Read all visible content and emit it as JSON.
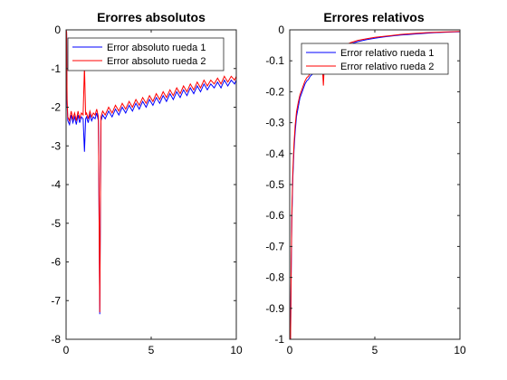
{
  "chart_data": [
    {
      "type": "line",
      "title": "Erorres absolutos",
      "xlabel": "",
      "ylabel": "",
      "xlim": [
        0,
        10
      ],
      "ylim": [
        -8,
        0
      ],
      "xticks": [
        0,
        5,
        10
      ],
      "yticks": [
        0,
        -1,
        -2,
        -3,
        -4,
        -5,
        -6,
        -7,
        -8
      ],
      "legend_location": "top-right",
      "grid": false,
      "series": [
        {
          "name": "Error absoluto rueda 1",
          "color": "#0000ff",
          "x": [
            0,
            0.03,
            0.06,
            0.1,
            0.2,
            0.3,
            0.4,
            0.5,
            0.6,
            0.7,
            0.8,
            0.9,
            1.0,
            1.08,
            1.15,
            1.2,
            1.3,
            1.4,
            1.5,
            1.6,
            1.7,
            1.8,
            1.9,
            1.98,
            2.05,
            2.15,
            2.3,
            2.5,
            2.7,
            2.9,
            3.1,
            3.3,
            3.5,
            3.7,
            3.9,
            4.1,
            4.3,
            4.5,
            4.7,
            4.9,
            5.1,
            5.3,
            5.5,
            5.7,
            5.9,
            6.1,
            6.3,
            6.5,
            6.7,
            6.9,
            7.1,
            7.3,
            7.5,
            7.7,
            7.9,
            8.1,
            8.3,
            8.5,
            8.7,
            8.9,
            9.1,
            9.3,
            9.5,
            9.7,
            9.9,
            10.0
          ],
          "y": [
            0,
            -0.1,
            -1.9,
            -2.35,
            -2.45,
            -2.2,
            -2.4,
            -2.25,
            -2.45,
            -2.2,
            -2.4,
            -2.25,
            -2.3,
            -3.15,
            -2.3,
            -2.25,
            -2.4,
            -2.2,
            -2.35,
            -2.25,
            -2.3,
            -2.15,
            -2.35,
            -7.35,
            -2.35,
            -2.2,
            -2.3,
            -2.1,
            -2.25,
            -2.05,
            -2.2,
            -2.0,
            -2.15,
            -1.95,
            -2.1,
            -1.9,
            -2.05,
            -1.85,
            -2.0,
            -1.8,
            -1.95,
            -1.75,
            -1.9,
            -1.7,
            -1.85,
            -1.65,
            -1.8,
            -1.6,
            -1.75,
            -1.55,
            -1.7,
            -1.5,
            -1.65,
            -1.45,
            -1.6,
            -1.4,
            -1.55,
            -1.4,
            -1.5,
            -1.35,
            -1.5,
            -1.3,
            -1.45,
            -1.3,
            -1.4,
            -1.3
          ]
        },
        {
          "name": "Error absoluto rueda 2",
          "color": "#ff0000",
          "x": [
            0,
            0.03,
            0.06,
            0.1,
            0.2,
            0.3,
            0.4,
            0.5,
            0.6,
            0.7,
            0.8,
            0.9,
            1.0,
            1.08,
            1.15,
            1.2,
            1.3,
            1.4,
            1.5,
            1.6,
            1.7,
            1.8,
            1.9,
            1.98,
            2.05,
            2.15,
            2.3,
            2.5,
            2.7,
            2.9,
            3.1,
            3.3,
            3.5,
            3.7,
            3.9,
            4.1,
            4.3,
            4.5,
            4.7,
            4.9,
            5.1,
            5.3,
            5.5,
            5.7,
            5.9,
            6.1,
            6.3,
            6.5,
            6.7,
            6.9,
            7.1,
            7.3,
            7.5,
            7.7,
            7.9,
            8.1,
            8.3,
            8.5,
            8.7,
            8.9,
            9.1,
            9.3,
            9.5,
            9.7,
            9.9,
            10.0
          ],
          "y": [
            0,
            -0.05,
            -1.8,
            -2.25,
            -2.35,
            -2.1,
            -2.3,
            -2.15,
            -2.35,
            -2.1,
            -2.3,
            -2.15,
            -2.2,
            -0.95,
            -2.2,
            -2.15,
            -2.3,
            -2.1,
            -2.25,
            -2.15,
            -2.2,
            -2.05,
            -2.25,
            -7.3,
            -2.25,
            -2.1,
            -2.2,
            -2.0,
            -2.15,
            -1.95,
            -2.1,
            -1.9,
            -2.05,
            -1.85,
            -2.0,
            -1.8,
            -1.95,
            -1.75,
            -1.9,
            -1.7,
            -1.85,
            -1.65,
            -1.8,
            -1.6,
            -1.75,
            -1.55,
            -1.7,
            -1.5,
            -1.65,
            -1.45,
            -1.6,
            -1.4,
            -1.55,
            -1.35,
            -1.5,
            -1.3,
            -1.45,
            -1.3,
            -1.4,
            -1.25,
            -1.4,
            -1.2,
            -1.35,
            -1.2,
            -1.3,
            -1.2
          ]
        }
      ]
    },
    {
      "type": "line",
      "title": "Errores relativos",
      "xlabel": "",
      "ylabel": "",
      "xlim": [
        0,
        10
      ],
      "ylim": [
        -1,
        0
      ],
      "xticks": [
        0,
        5,
        10
      ],
      "yticks": [
        0,
        -0.1,
        -0.2,
        -0.3,
        -0.4,
        -0.5,
        -0.6,
        -0.7,
        -0.8,
        -0.9,
        -1
      ],
      "legend_location": "top-right",
      "grid": false,
      "series": [
        {
          "name": "Error relativo rueda 1",
          "color": "#0000ff",
          "x": [
            0,
            0.05,
            0.08,
            0.12,
            0.18,
            0.25,
            0.32,
            0.4,
            0.5,
            0.6,
            0.7,
            0.8,
            0.9,
            1.0,
            1.1,
            1.2,
            1.3,
            1.4,
            1.5,
            1.6,
            1.7,
            1.8,
            1.9,
            1.98,
            2.05,
            2.2,
            2.4,
            2.6,
            2.8,
            3.0,
            3.3,
            3.6,
            4.0,
            4.5,
            5.0,
            5.5,
            6.0,
            6.5,
            7.0,
            7.5,
            8.0,
            8.5,
            9.0,
            9.5,
            10.0
          ],
          "y": [
            -1.0,
            -1.0,
            -0.82,
            -0.62,
            -0.48,
            -0.39,
            -0.33,
            -0.28,
            -0.25,
            -0.22,
            -0.205,
            -0.19,
            -0.175,
            -0.165,
            -0.16,
            -0.15,
            -0.145,
            -0.14,
            -0.13,
            -0.125,
            -0.12,
            -0.115,
            -0.11,
            -0.15,
            -0.1,
            -0.095,
            -0.085,
            -0.075,
            -0.068,
            -0.06,
            -0.052,
            -0.045,
            -0.038,
            -0.032,
            -0.027,
            -0.023,
            -0.02,
            -0.017,
            -0.015,
            -0.013,
            -0.011,
            -0.009,
            -0.008,
            -0.007,
            -0.006
          ]
        },
        {
          "name": "Error relativo rueda 2",
          "color": "#ff0000",
          "x": [
            0,
            0.05,
            0.08,
            0.12,
            0.18,
            0.25,
            0.32,
            0.4,
            0.5,
            0.6,
            0.7,
            0.8,
            0.9,
            1.0,
            1.1,
            1.2,
            1.3,
            1.4,
            1.5,
            1.6,
            1.7,
            1.8,
            1.9,
            1.98,
            2.05,
            2.2,
            2.4,
            2.6,
            2.8,
            3.0,
            3.3,
            3.6,
            4.0,
            4.5,
            5.0,
            5.5,
            6.0,
            6.5,
            7.0,
            7.5,
            8.0,
            8.5,
            9.0,
            9.5,
            10.0
          ],
          "y": [
            -1.0,
            -1.0,
            -0.8,
            -0.6,
            -0.46,
            -0.37,
            -0.31,
            -0.265,
            -0.235,
            -0.21,
            -0.195,
            -0.18,
            -0.165,
            -0.155,
            -0.15,
            -0.14,
            -0.135,
            -0.13,
            -0.12,
            -0.115,
            -0.11,
            -0.105,
            -0.1,
            -0.18,
            -0.095,
            -0.09,
            -0.08,
            -0.07,
            -0.063,
            -0.055,
            -0.048,
            -0.041,
            -0.034,
            -0.029,
            -0.024,
            -0.021,
            -0.018,
            -0.015,
            -0.013,
            -0.011,
            -0.009,
            -0.008,
            -0.007,
            -0.006,
            -0.005
          ]
        }
      ]
    }
  ]
}
